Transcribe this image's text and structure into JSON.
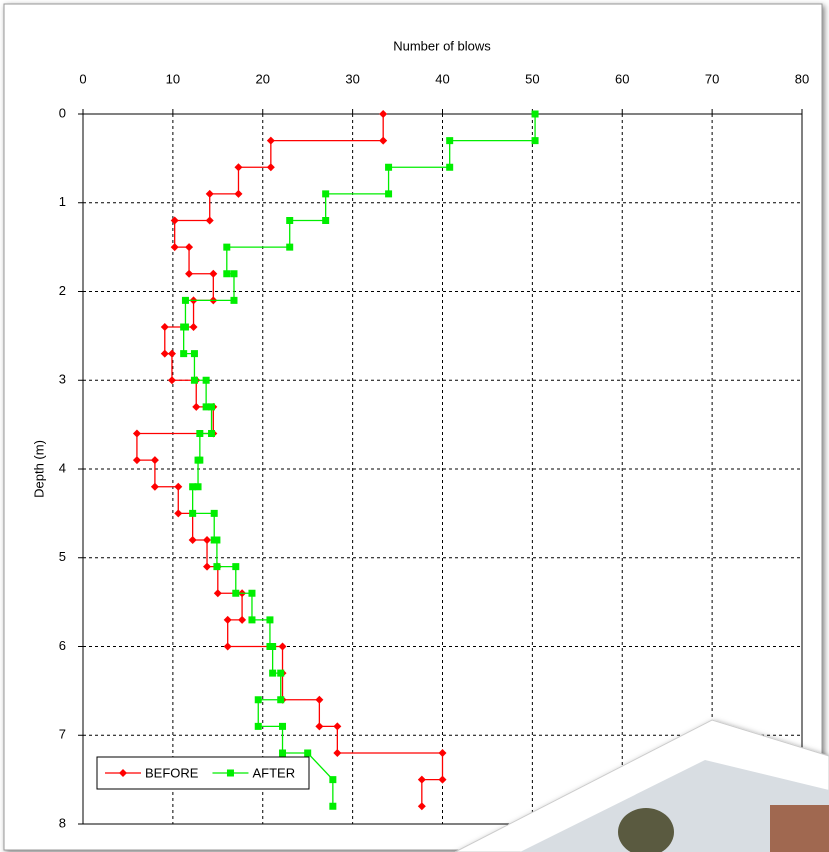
{
  "chart_data": {
    "type": "step-line",
    "x_label": "Number of blows",
    "y_label": "Depth (m)",
    "xlim": [
      0,
      80
    ],
    "xticks": [
      0,
      10,
      20,
      30,
      40,
      50,
      60,
      70,
      80
    ],
    "ylim": [
      0,
      8
    ],
    "yticks": [
      0,
      1,
      2,
      3,
      4,
      5,
      6,
      7,
      8
    ],
    "y_inverted": true,
    "grid": true,
    "legend": "lower left",
    "series": [
      {
        "name": "BEFORE",
        "color": "#ff0000",
        "marker": "diamond",
        "x": [
          33.4,
          33.4,
          20.9,
          20.9,
          17.3,
          17.3,
          14.1,
          14.1,
          10.2,
          10.2,
          11.8,
          11.8,
          14.5,
          14.5,
          12.3,
          12.3,
          9.1,
          9.1,
          9.9,
          9.9,
          12.6,
          12.6,
          14.5,
          14.5,
          6.0,
          6.0,
          8.0,
          8.0,
          10.6,
          10.6,
          12.2,
          12.2,
          13.8,
          13.8,
          15.0,
          15.0,
          17.7,
          17.7,
          16.1,
          16.1,
          22.2,
          22.2,
          22.2,
          26.3,
          26.3,
          28.3,
          28.3,
          40.0,
          40.0,
          37.7,
          37.7
        ],
        "y": [
          0,
          0.3,
          0.3,
          0.6,
          0.6,
          0.9,
          0.9,
          1.2,
          1.2,
          1.5,
          1.5,
          1.8,
          1.8,
          2.1,
          2.1,
          2.4,
          2.4,
          2.7,
          2.7,
          3.0,
          3.0,
          3.3,
          3.3,
          3.6,
          3.6,
          3.9,
          3.9,
          4.2,
          4.2,
          4.5,
          4.5,
          4.8,
          4.8,
          5.1,
          5.1,
          5.4,
          5.4,
          5.7,
          5.7,
          6.0,
          6.0,
          6.3,
          6.6,
          6.6,
          6.9,
          6.9,
          7.2,
          7.2,
          7.5,
          7.5,
          7.8
        ]
      },
      {
        "name": "AFTER",
        "color": "#00ee00",
        "marker": "square",
        "x": [
          50.3,
          50.3,
          40.8,
          40.8,
          34.0,
          34.0,
          27.0,
          27.0,
          23.0,
          23.0,
          16.0,
          16.0,
          16.8,
          16.8,
          11.4,
          11.4,
          11.2,
          11.2,
          12.4,
          12.4,
          13.7,
          13.7,
          14.3,
          14.3,
          13.0,
          13.0,
          12.8,
          12.8,
          12.2,
          12.2,
          14.6,
          14.6,
          14.9,
          14.9,
          17.0,
          17.0,
          18.8,
          18.8,
          20.8,
          20.8,
          21.1,
          21.1,
          22.0,
          22.0,
          19.5,
          19.5,
          22.2,
          22.2,
          25.0,
          27.8,
          27.8
        ],
        "y": [
          0,
          0.3,
          0.3,
          0.6,
          0.6,
          0.9,
          0.9,
          1.2,
          1.2,
          1.5,
          1.5,
          1.8,
          1.8,
          2.1,
          2.1,
          2.4,
          2.4,
          2.7,
          2.7,
          3.0,
          3.0,
          3.3,
          3.3,
          3.6,
          3.6,
          3.9,
          3.9,
          4.2,
          4.2,
          4.5,
          4.5,
          4.8,
          4.8,
          5.1,
          5.1,
          5.4,
          5.4,
          5.7,
          5.7,
          6.0,
          6.0,
          6.3,
          6.3,
          6.6,
          6.6,
          6.9,
          6.9,
          7.2,
          7.2,
          7.5,
          7.8
        ]
      }
    ]
  }
}
